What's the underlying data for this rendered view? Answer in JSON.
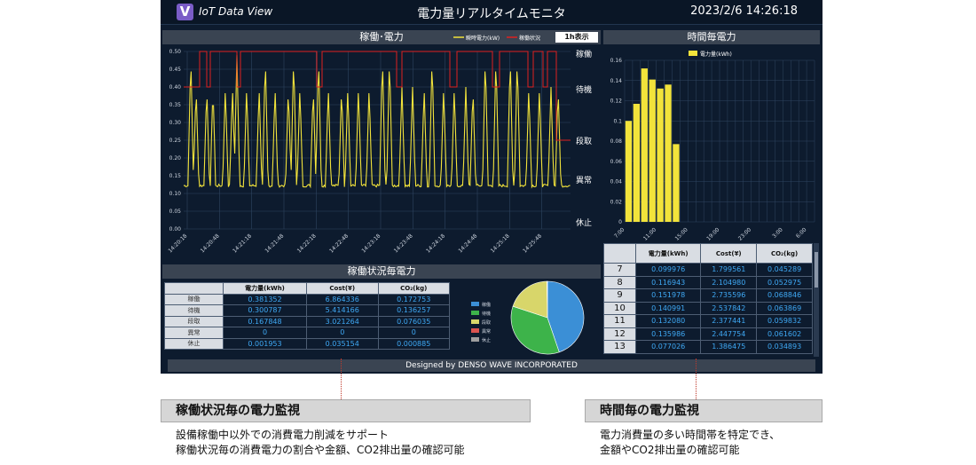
{
  "app": {
    "logo_letter": "V",
    "logo_text": "IoT Data View",
    "title": "電力量リアルタイムモニタ",
    "datetime": "2023/2/6 14:26:18"
  },
  "operation_panel": {
    "title": "稼働･電力",
    "legend": [
      "瞬時電力(kW)",
      "稼働状況"
    ],
    "range_button": "1h表示",
    "y_ticks": [
      "0.50",
      "0.45",
      "0.40",
      "0.35",
      "0.30",
      "0.25",
      "0.20",
      "0.15",
      "0.10",
      "0.05",
      "0.00"
    ],
    "state_labels": [
      "稼働",
      "待機",
      "段取",
      "異常",
      "休止"
    ],
    "x_ticks": [
      "14:20:18",
      "14:20:48",
      "14:21:18",
      "14:21:48",
      "14:22:18",
      "14:22:48",
      "14:23:18",
      "14:23:48",
      "14:24:18",
      "14:24:48",
      "14:25:18",
      "14:25:48"
    ],
    "colors": {
      "power": "#f2e33b",
      "status": "#e02020"
    }
  },
  "hourly_panel": {
    "title": "時間毎電力",
    "legend": "電力量(kWh)",
    "y_ticks": [
      "0.16",
      "0.14",
      "0.12",
      "0.1",
      "0.08",
      "0.06",
      "0.04",
      "0.02",
      "0"
    ],
    "x_ticks": [
      "7:00",
      "11:00",
      "15:00",
      "19:00",
      "23:00",
      "3:00",
      "6:00"
    ],
    "color": "#f2e33b"
  },
  "chart_data": [
    {
      "type": "bar",
      "title": "時間毎電力",
      "categories": [
        "7",
        "8",
        "9",
        "10",
        "11",
        "12",
        "13"
      ],
      "series": [
        {
          "name": "電力量(kWh)",
          "values": [
            0.099976,
            0.116943,
            0.151978,
            0.140991,
            0.13208,
            0.135986,
            0.077026
          ]
        }
      ],
      "ylim": [
        0,
        0.16
      ]
    },
    {
      "type": "pie",
      "categories": [
        "稼働",
        "待機",
        "段取",
        "異常",
        "休止"
      ],
      "values": [
        0.381352,
        0.300787,
        0.167848,
        0,
        0.001953
      ],
      "colors": [
        "#3b8fd6",
        "#3db34a",
        "#d8d66a",
        "#d9534f",
        "#9e9e9e"
      ]
    }
  ],
  "status_panel": {
    "title": "稼働状況毎電力",
    "headers": [
      "",
      "電力量(kWh)",
      "Cost(¥)",
      "CO₂(kg)"
    ],
    "rows": [
      {
        "label": "稼働",
        "kwh": "0.381352",
        "cost": "6.864336",
        "co2": "0.172753"
      },
      {
        "label": "待機",
        "kwh": "0.300787",
        "cost": "5.414166",
        "co2": "0.136257"
      },
      {
        "label": "段取",
        "kwh": "0.167848",
        "cost": "3.021264",
        "co2": "0.076035"
      },
      {
        "label": "異常",
        "kwh": "0",
        "cost": "0",
        "co2": "0"
      },
      {
        "label": "休止",
        "kwh": "0.001953",
        "cost": "0.035154",
        "co2": "0.000885"
      }
    ],
    "pie_legend": [
      "稼働",
      "待機",
      "段取",
      "異常",
      "休止"
    ]
  },
  "hourly_table": {
    "headers": [
      "",
      "電力量(kWh)",
      "Cost(¥)",
      "CO₂(kg)"
    ],
    "rows": [
      {
        "hour": "7",
        "kwh": "0.099976",
        "cost": "1.799561",
        "co2": "0.045289"
      },
      {
        "hour": "8",
        "kwh": "0.116943",
        "cost": "2.104980",
        "co2": "0.052975"
      },
      {
        "hour": "9",
        "kwh": "0.151978",
        "cost": "2.735596",
        "co2": "0.068846"
      },
      {
        "hour": "10",
        "kwh": "0.140991",
        "cost": "2.537842",
        "co2": "0.063869"
      },
      {
        "hour": "11",
        "kwh": "0.132080",
        "cost": "2.377441",
        "co2": "0.059832"
      },
      {
        "hour": "12",
        "kwh": "0.135986",
        "cost": "2.447754",
        "co2": "0.061602"
      },
      {
        "hour": "13",
        "kwh": "0.077026",
        "cost": "1.386475",
        "co2": "0.034893"
      }
    ]
  },
  "footer": "Designed by DENSO WAVE INCORPORATED",
  "callouts": [
    {
      "title": "稼働状況毎の電力監視",
      "lines": [
        "設備稼働中以外での消費電力削減をサポート",
        "稼働状況毎の消費電力の割合や金額、CO2排出量の確認可能"
      ]
    },
    {
      "title": "時間毎の電力監視",
      "lines": [
        "電力消費量の多い時間帯を特定でき、",
        "金額やCO2排出量の確認可能"
      ]
    }
  ]
}
